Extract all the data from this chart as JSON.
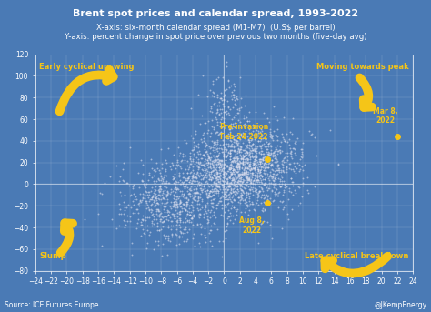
{
  "title": "Brent spot prices and calendar spread, 1993-2022",
  "subtitle1": "X-axis: six-month calendar spread (M1-M7)  (U.S$ per barrel)",
  "subtitle2": "Y-axis: percent change in spot price over previous two months (five-day avg)",
  "bg_color": "#4a7ab5",
  "dot_color": "#dde0f0",
  "arrow_color": "#f5c518",
  "text_color": "#f5c518",
  "xlim": [
    -24,
    24
  ],
  "ylim": [
    -80,
    120
  ],
  "xticks": [
    -24,
    -22,
    -20,
    -18,
    -16,
    -14,
    -12,
    -10,
    -8,
    -6,
    -4,
    -2,
    0,
    2,
    4,
    6,
    8,
    10,
    12,
    14,
    16,
    18,
    20,
    22,
    24
  ],
  "yticks": [
    -80,
    -60,
    -40,
    -20,
    0,
    20,
    40,
    60,
    80,
    100,
    120
  ],
  "source_text": "Source: ICE Futures Europe",
  "handle_text": "@JKempEnergy",
  "seed": 42,
  "n_points": 2500
}
